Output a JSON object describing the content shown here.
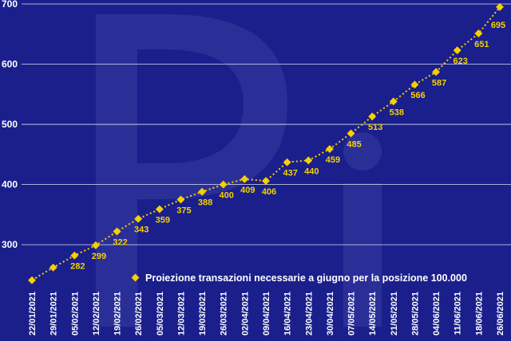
{
  "chart_data": {
    "type": "line",
    "categories": [
      "22/01/2021",
      "29/01/2021",
      "05/02/2021",
      "12/02/2021",
      "19/02/2021",
      "26/02/2021",
      "05/03/2021",
      "12/03/2021",
      "19/03/2021",
      "26/03/2021",
      "02/04/2021",
      "09/04/2021",
      "16/04/2021",
      "23/04/2021",
      "30/04/2021",
      "07/05/2021",
      "14/05/2021",
      "21/05/2021",
      "28/05/2021",
      "04/06/2021",
      "11/06/2021",
      "18/06/2021",
      "26/06/2021"
    ],
    "series": [
      {
        "name": "Proiezione transazioni necessarie a giugno per la posizione 100.000",
        "values": [
          241,
          262,
          282,
          299,
          322,
          343,
          359,
          375,
          388,
          400,
          409,
          406,
          437,
          440,
          459,
          485,
          513,
          538,
          566,
          587,
          623,
          651,
          695
        ],
        "data_labels": [
          null,
          null,
          "282",
          "299",
          "322",
          "343",
          "359",
          "375",
          "388",
          "400",
          "409",
          "406",
          "437",
          "440",
          "459",
          "485",
          "513",
          "538",
          "566",
          "587",
          "623",
          "651",
          "695"
        ]
      }
    ],
    "ylim": [
      230,
      700
    ],
    "yticks": [
      "300",
      "400",
      "500",
      "600",
      "700"
    ],
    "grid": true,
    "legend_position": "bottom-right",
    "colors": {
      "background": "#1a1f8c",
      "line": "#f5d000",
      "grid": "#ffffff",
      "text": "#ffffff",
      "watermark": "#2a2f98"
    }
  }
}
